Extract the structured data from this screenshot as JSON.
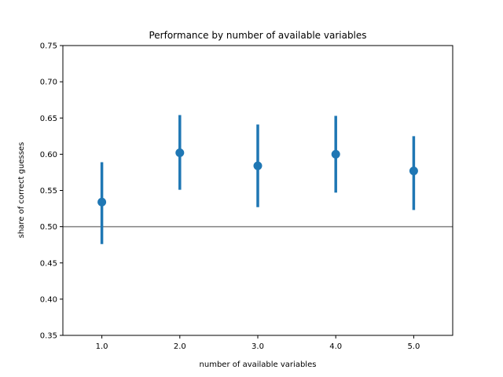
{
  "chart_data": {
    "type": "scatter",
    "title": "Performance by number of available variables",
    "xlabel": "number of available variables",
    "ylabel": "share of correct guesses",
    "categories": [
      "1.0",
      "2.0",
      "3.0",
      "4.0",
      "5.0"
    ],
    "values": [
      0.534,
      0.602,
      0.584,
      0.6,
      0.577
    ],
    "error_low": [
      0.476,
      0.551,
      0.527,
      0.547,
      0.523
    ],
    "error_high": [
      0.589,
      0.654,
      0.641,
      0.653,
      0.625
    ],
    "ylim": [
      0.35,
      0.75
    ],
    "yticks": [
      "0.35",
      "0.40",
      "0.45",
      "0.50",
      "0.55",
      "0.60",
      "0.65",
      "0.70",
      "0.75"
    ],
    "reference_line": 0.5,
    "colors": {
      "points": "#1f77b4",
      "reference": "#808080"
    },
    "grid": false
  }
}
